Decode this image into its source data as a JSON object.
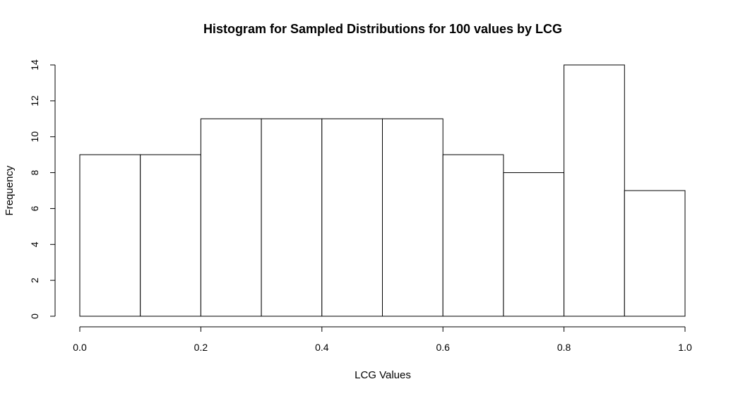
{
  "chart_data": {
    "type": "bar",
    "title": "Histogram for Sampled Distributions for 100 values by LCG",
    "xlabel": "LCG Values",
    "ylabel": "Frequency",
    "bin_edges": [
      0.0,
      0.1,
      0.2,
      0.3,
      0.4,
      0.5,
      0.6,
      0.7,
      0.8,
      0.9,
      1.0
    ],
    "values": [
      9,
      9,
      11,
      11,
      11,
      11,
      9,
      8,
      14,
      7
    ],
    "xlim": [
      0.0,
      1.0
    ],
    "ylim": [
      0,
      14
    ],
    "x_ticks": [
      0.0,
      0.2,
      0.4,
      0.6,
      0.8,
      1.0
    ],
    "x_tick_labels": [
      "0.0",
      "0.2",
      "0.4",
      "0.6",
      "0.8",
      "1.0"
    ],
    "y_ticks": [
      0,
      2,
      4,
      6,
      8,
      10,
      12,
      14
    ],
    "y_tick_labels": [
      "0",
      "2",
      "4",
      "6",
      "8",
      "10",
      "12",
      "14"
    ],
    "grid": false,
    "legend": "none",
    "bar_fill": "#ffffff",
    "bar_stroke": "#000000"
  }
}
